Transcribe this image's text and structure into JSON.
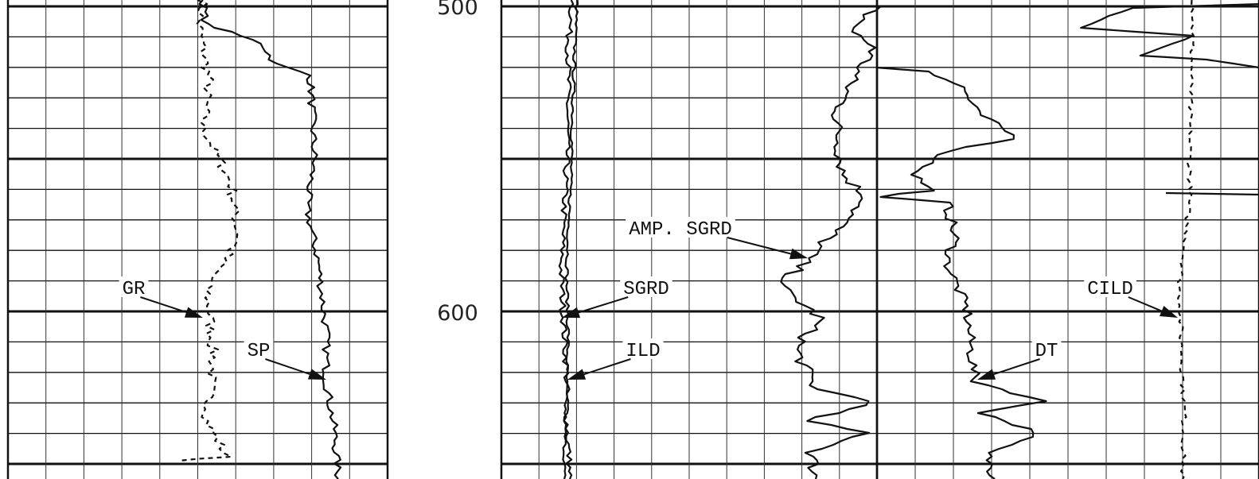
{
  "depth_labels": [
    "500",
    "600"
  ],
  "curve_labels": {
    "gr": "GR",
    "sp": "SP",
    "amp_sgrd": "AMP. SGRD",
    "sgrd": "SGRD",
    "ild": "ILD",
    "dt": "DT",
    "cild": "CILD"
  }
}
